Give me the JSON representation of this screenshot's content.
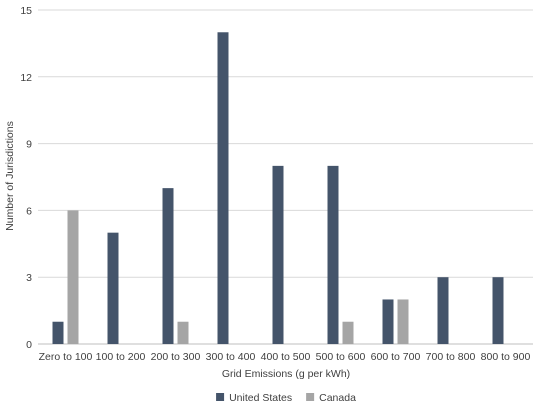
{
  "chart_data": {
    "type": "bar",
    "title": "",
    "xlabel": "Grid Emissions (g per kWh)",
    "ylabel": "Number of Jurisdictions",
    "ylim": [
      0,
      15
    ],
    "yticks": [
      0,
      3,
      6,
      9,
      12,
      15
    ],
    "grid": true,
    "legend_position": "bottom",
    "categories": [
      "Zero to 100",
      "100 to 200",
      "200 to 300",
      "300 to 400",
      "400 to 500",
      "500 to 600",
      "600 to 700",
      "700 to 800",
      "800 to 900"
    ],
    "series": [
      {
        "name": "United States",
        "color": "#44546a",
        "values": [
          1,
          5,
          7,
          14,
          8,
          8,
          2,
          3,
          3
        ]
      },
      {
        "name": "Canada",
        "color": "#a5a5a5",
        "values": [
          6,
          0,
          1,
          0,
          0,
          1,
          2,
          0,
          0
        ]
      }
    ]
  }
}
